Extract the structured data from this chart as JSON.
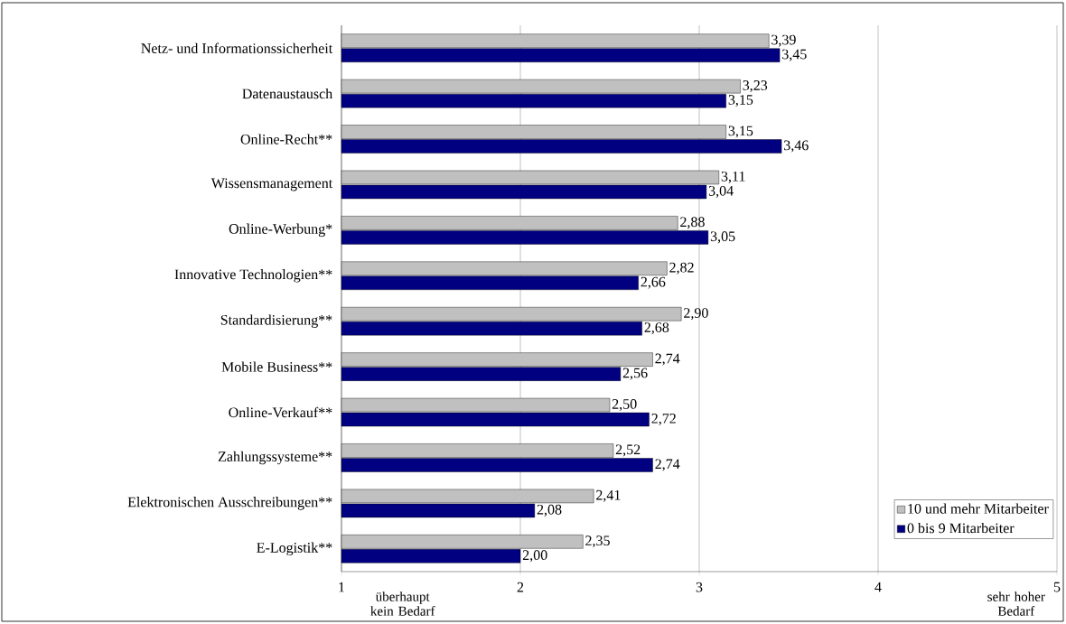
{
  "chart_data": {
    "type": "bar",
    "orientation": "horizontal",
    "categories": [
      "Netz- und Informationssicherheit",
      "Datenaustausch",
      "Online-Recht**",
      "Wissensmanagement",
      "Online-Werbung*",
      "Innovative Technologien**",
      "Standardisierung**",
      "Mobile Business**",
      "Online-Verkauf**",
      "Zahlungssysteme**",
      "Elektronischen Ausschreibungen**",
      "E-Logistik**"
    ],
    "series": [
      {
        "name": "10 und mehr Mitarbeiter",
        "color": "#c0c0c0",
        "values": [
          3.39,
          3.23,
          3.15,
          3.11,
          2.88,
          2.82,
          2.9,
          2.74,
          2.5,
          2.52,
          2.41,
          2.35
        ],
        "value_labels": [
          "3,39",
          "3,23",
          "3,15",
          "3,11",
          "2,88",
          "2,82",
          "2,90",
          "2,74",
          "2,50",
          "2,52",
          "2,41",
          "2,35"
        ]
      },
      {
        "name": "0 bis 9 Mitarbeiter",
        "color": "#000080",
        "values": [
          3.45,
          3.15,
          3.46,
          3.04,
          3.05,
          2.66,
          2.68,
          2.56,
          2.72,
          2.74,
          2.08,
          2.0
        ],
        "value_labels": [
          "3,45",
          "3,15",
          "3,46",
          "3,04",
          "3,05",
          "2,66",
          "2,68",
          "2,56",
          "2,72",
          "2,74",
          "2,08",
          "2,00"
        ]
      }
    ],
    "xlim": [
      1,
      5
    ],
    "xticks": [
      1,
      2,
      3,
      4,
      5
    ],
    "grid": "x",
    "legend": "bottom right",
    "annotations": [
      "überhaupt kein Bedarf",
      "sehr hoher Bedarf"
    ]
  }
}
